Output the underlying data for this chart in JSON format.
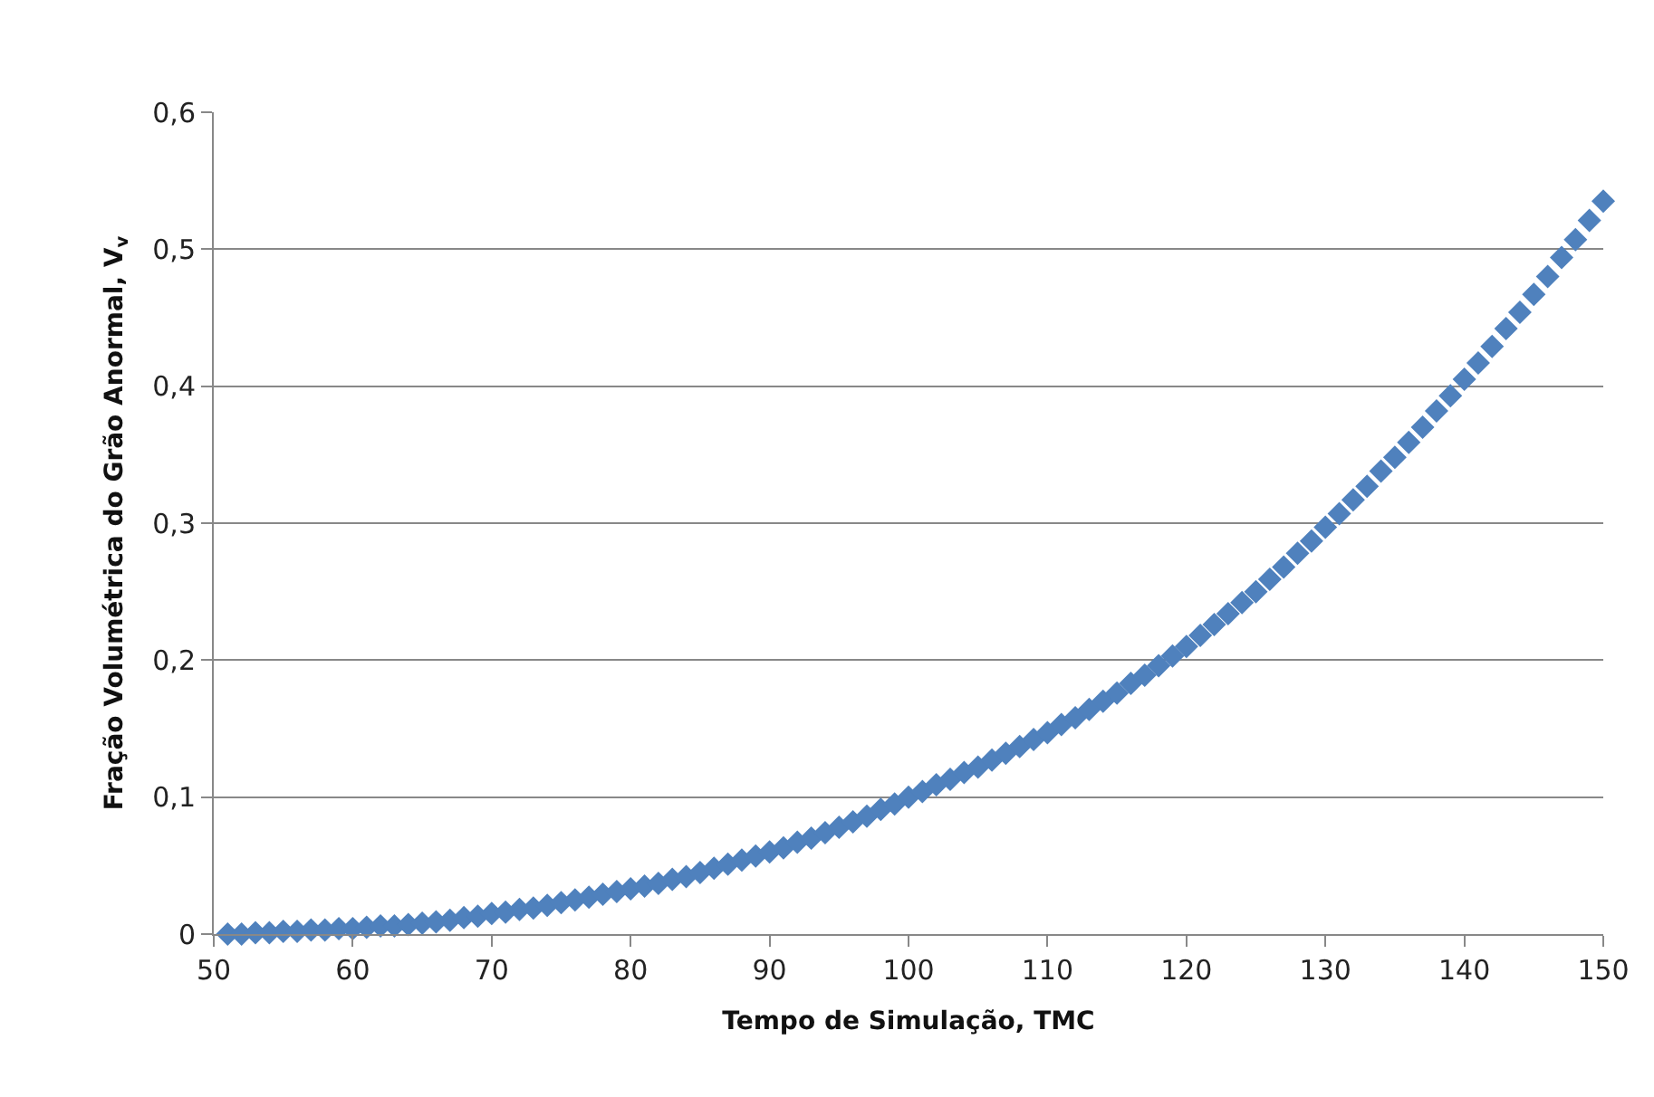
{
  "chart_data": {
    "type": "scatter",
    "xlabel": "Tempo de Simulação, TMC",
    "ylabel": "Fração Volumétrica do Grão Anormal, V$_{v}$",
    "x": [
      51,
      52,
      53,
      54,
      55,
      56,
      57,
      58,
      59,
      60,
      61,
      62,
      63,
      64,
      65,
      66,
      67,
      68,
      69,
      70,
      71,
      72,
      73,
      74,
      75,
      76,
      77,
      78,
      79,
      80,
      81,
      82,
      83,
      84,
      85,
      86,
      87,
      88,
      89,
      90,
      91,
      92,
      93,
      94,
      95,
      96,
      97,
      98,
      99,
      100,
      101,
      102,
      103,
      104,
      105,
      106,
      107,
      108,
      109,
      110,
      111,
      112,
      113,
      114,
      115,
      116,
      117,
      118,
      119,
      120,
      121,
      122,
      123,
      124,
      125,
      126,
      127,
      128,
      129,
      130,
      131,
      132,
      133,
      134,
      135,
      136,
      137,
      138,
      139,
      140,
      141,
      142,
      143,
      144,
      145,
      146,
      147,
      148,
      149,
      150
    ],
    "series": [
      {
        "color": "#4f81bd",
        "values": [
          0.0,
          0.0,
          0.001,
          0.001,
          0.002,
          0.002,
          0.003,
          0.003,
          0.004,
          0.004,
          0.005,
          0.006,
          0.006,
          0.007,
          0.008,
          0.009,
          0.01,
          0.012,
          0.013,
          0.015,
          0.016,
          0.018,
          0.019,
          0.021,
          0.023,
          0.025,
          0.027,
          0.029,
          0.031,
          0.033,
          0.035,
          0.037,
          0.04,
          0.042,
          0.045,
          0.048,
          0.051,
          0.054,
          0.057,
          0.06,
          0.063,
          0.067,
          0.07,
          0.074,
          0.078,
          0.082,
          0.086,
          0.091,
          0.095,
          0.1,
          0.104,
          0.109,
          0.113,
          0.118,
          0.122,
          0.127,
          0.132,
          0.137,
          0.142,
          0.147,
          0.153,
          0.158,
          0.164,
          0.17,
          0.176,
          0.183,
          0.189,
          0.196,
          0.203,
          0.21,
          0.218,
          0.226,
          0.234,
          0.242,
          0.25,
          0.259,
          0.268,
          0.278,
          0.287,
          0.297,
          0.307,
          0.317,
          0.327,
          0.338,
          0.348,
          0.359,
          0.37,
          0.382,
          0.393,
          0.405,
          0.417,
          0.429,
          0.442,
          0.454,
          0.467,
          0.48,
          0.494,
          0.507,
          0.521,
          0.535
        ]
      }
    ],
    "xlim": [
      50,
      150
    ],
    "xticks": [
      50,
      60,
      70,
      80,
      90,
      100,
      110,
      120,
      130,
      140,
      150
    ],
    "ylim": [
      0,
      0.6
    ],
    "yticks": [
      0,
      {
        "value": 0.1,
        "label": "0,1"
      },
      {
        "value": 0.2,
        "label": "0,2"
      },
      {
        "value": 0.3,
        "label": "0,3"
      },
      {
        "value": 0.4,
        "label": "0,4"
      },
      {
        "value": 0.5,
        "label": "0,5"
      },
      {
        "value": 0.6,
        "label": "0,6"
      }
    ],
    "grid": "y",
    "marker": "diamond"
  }
}
